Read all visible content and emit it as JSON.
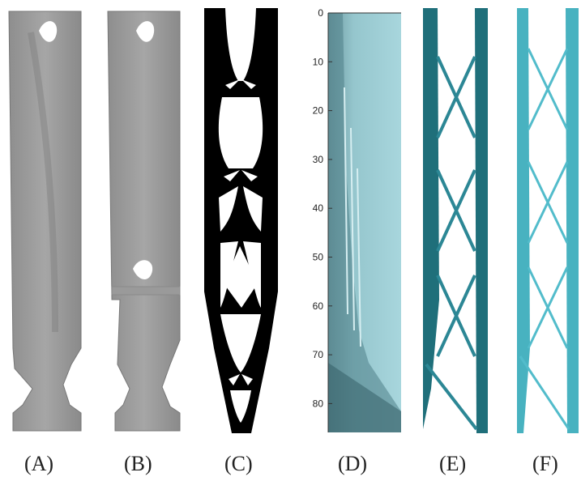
{
  "figure": {
    "panels": [
      {
        "id": "A",
        "label": "(A)"
      },
      {
        "id": "B",
        "label": "(B)"
      },
      {
        "id": "C",
        "label": "(C)"
      },
      {
        "id": "D",
        "label": "(D)"
      },
      {
        "id": "E",
        "label": "(E)"
      },
      {
        "id": "F",
        "label": "(F)"
      }
    ],
    "axis_d": {
      "ticks": [
        "0",
        "10",
        "20",
        "30",
        "40",
        "50",
        "60",
        "70",
        "80"
      ]
    }
  }
}
